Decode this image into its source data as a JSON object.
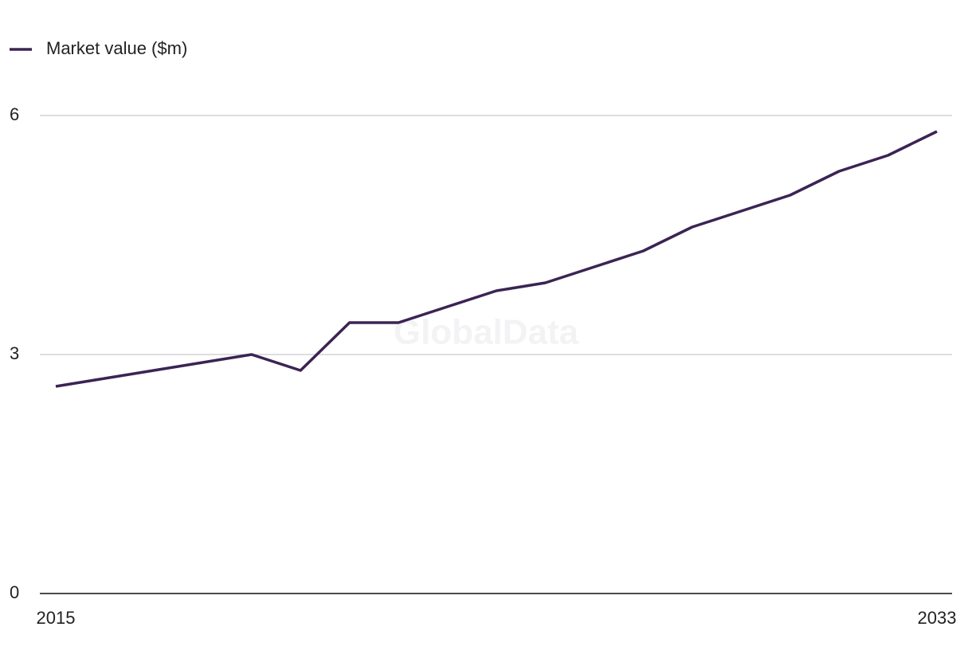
{
  "chart_data": {
    "type": "line",
    "watermark": "GlobalData",
    "x": [
      2015,
      2016,
      2017,
      2018,
      2019,
      2020,
      2021,
      2022,
      2023,
      2024,
      2025,
      2026,
      2027,
      2028,
      2029,
      2030,
      2031,
      2032,
      2033
    ],
    "series": [
      {
        "name": "Market value ($m)",
        "color": "#3b2454",
        "values": [
          2.6,
          2.7,
          2.8,
          2.9,
          3.0,
          2.8,
          3.4,
          3.4,
          3.6,
          3.8,
          3.9,
          4.1,
          4.3,
          4.6,
          4.8,
          5.0,
          5.3,
          5.5,
          5.8
        ]
      }
    ],
    "xlim": [
      2015,
      2033
    ],
    "xticks": [
      2015,
      2033
    ],
    "ylim": [
      0,
      6
    ],
    "yticks": [
      0,
      3,
      6
    ],
    "grid": true,
    "legend": "top-left"
  }
}
